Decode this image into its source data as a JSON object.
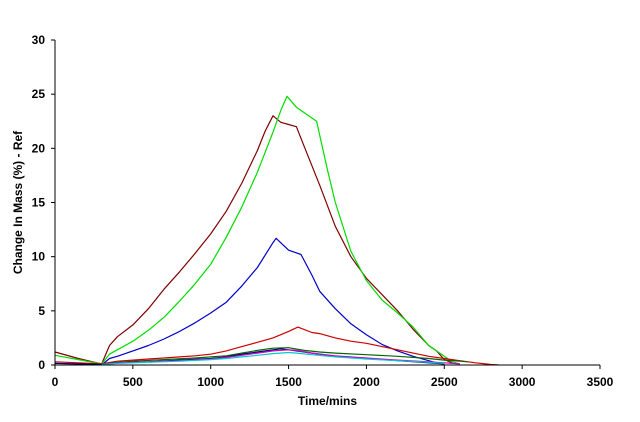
{
  "chart_data": {
    "type": "line",
    "title": "",
    "xlabel": "Time/mins",
    "ylabel": "Change In Mass (%) - Ref",
    "xlim": [
      0,
      3500
    ],
    "ylim": [
      0,
      30
    ],
    "xticks": [
      0,
      500,
      1000,
      1500,
      2000,
      2500,
      3000,
      3500
    ],
    "yticks": [
      0,
      5,
      10,
      15,
      20,
      25,
      30
    ],
    "grid": false,
    "legend": "none",
    "series": [
      {
        "color": "#800000",
        "points": [
          [
            0,
            1.2
          ],
          [
            150,
            0.6
          ],
          [
            300,
            0.1
          ],
          [
            350,
            1.8
          ],
          [
            400,
            2.6
          ],
          [
            500,
            3.7
          ],
          [
            600,
            5.2
          ],
          [
            700,
            7.0
          ],
          [
            800,
            8.6
          ],
          [
            900,
            10.3
          ],
          [
            1000,
            12.1
          ],
          [
            1100,
            14.2
          ],
          [
            1200,
            16.8
          ],
          [
            1300,
            19.8
          ],
          [
            1350,
            21.6
          ],
          [
            1400,
            23.0
          ],
          [
            1450,
            22.4
          ],
          [
            1500,
            22.2
          ],
          [
            1550,
            22.0
          ],
          [
            1600,
            20.2
          ],
          [
            1700,
            16.6
          ],
          [
            1800,
            12.8
          ],
          [
            1900,
            10.0
          ],
          [
            2000,
            8.0
          ],
          [
            2100,
            6.5
          ],
          [
            2200,
            5.0
          ],
          [
            2300,
            3.3
          ],
          [
            2400,
            1.8
          ],
          [
            2450,
            1.3
          ],
          [
            2500,
            0.5
          ],
          [
            2550,
            0.2
          ]
        ]
      },
      {
        "color": "#00dd00",
        "points": [
          [
            0,
            0.9
          ],
          [
            150,
            0.5
          ],
          [
            300,
            0.1
          ],
          [
            350,
            1.0
          ],
          [
            400,
            1.4
          ],
          [
            500,
            2.2
          ],
          [
            600,
            3.2
          ],
          [
            700,
            4.4
          ],
          [
            800,
            5.9
          ],
          [
            900,
            7.5
          ],
          [
            1000,
            9.3
          ],
          [
            1100,
            11.8
          ],
          [
            1200,
            14.6
          ],
          [
            1300,
            17.8
          ],
          [
            1400,
            21.5
          ],
          [
            1450,
            23.5
          ],
          [
            1490,
            24.8
          ],
          [
            1550,
            23.8
          ],
          [
            1600,
            23.3
          ],
          [
            1680,
            22.5
          ],
          [
            1750,
            18.0
          ],
          [
            1800,
            15.0
          ],
          [
            1900,
            10.5
          ],
          [
            2000,
            7.8
          ],
          [
            2100,
            6.0
          ],
          [
            2200,
            4.8
          ],
          [
            2300,
            3.5
          ],
          [
            2400,
            1.8
          ],
          [
            2500,
            0.8
          ],
          [
            2550,
            0.3
          ],
          [
            2600,
            0.1
          ]
        ]
      },
      {
        "color": "#0000cc",
        "points": [
          [
            300,
            0.0
          ],
          [
            350,
            0.6
          ],
          [
            400,
            0.8
          ],
          [
            500,
            1.3
          ],
          [
            600,
            1.8
          ],
          [
            700,
            2.4
          ],
          [
            800,
            3.1
          ],
          [
            900,
            3.9
          ],
          [
            1000,
            4.8
          ],
          [
            1100,
            5.8
          ],
          [
            1200,
            7.3
          ],
          [
            1300,
            9.0
          ],
          [
            1400,
            11.3
          ],
          [
            1420,
            11.7
          ],
          [
            1500,
            10.6
          ],
          [
            1580,
            10.2
          ],
          [
            1650,
            8.3
          ],
          [
            1700,
            6.8
          ],
          [
            1800,
            5.2
          ],
          [
            1900,
            3.8
          ],
          [
            2000,
            2.8
          ],
          [
            2100,
            1.9
          ],
          [
            2200,
            1.3
          ],
          [
            2300,
            0.8
          ],
          [
            2400,
            0.4
          ],
          [
            2450,
            0.2
          ],
          [
            2500,
            0.1
          ]
        ]
      },
      {
        "color": "#cc0000",
        "points": [
          [
            0,
            0.3
          ],
          [
            300,
            0.1
          ],
          [
            400,
            0.35
          ],
          [
            500,
            0.45
          ],
          [
            600,
            0.55
          ],
          [
            700,
            0.65
          ],
          [
            800,
            0.75
          ],
          [
            900,
            0.85
          ],
          [
            1000,
            1.0
          ],
          [
            1100,
            1.3
          ],
          [
            1200,
            1.7
          ],
          [
            1300,
            2.1
          ],
          [
            1400,
            2.5
          ],
          [
            1500,
            3.1
          ],
          [
            1560,
            3.5
          ],
          [
            1650,
            3.0
          ],
          [
            1700,
            2.9
          ],
          [
            1800,
            2.5
          ],
          [
            1900,
            2.2
          ],
          [
            2000,
            2.0
          ],
          [
            2100,
            1.7
          ],
          [
            2200,
            1.4
          ],
          [
            2300,
            1.1
          ],
          [
            2400,
            0.8
          ],
          [
            2500,
            0.6
          ],
          [
            2600,
            0.4
          ],
          [
            2700,
            0.2
          ],
          [
            2800,
            0.05
          ],
          [
            2850,
            0.0
          ]
        ]
      },
      {
        "color": "#006600",
        "points": [
          [
            300,
            0.05
          ],
          [
            400,
            0.25
          ],
          [
            500,
            0.35
          ],
          [
            700,
            0.5
          ],
          [
            900,
            0.65
          ],
          [
            1100,
            0.85
          ],
          [
            1200,
            1.1
          ],
          [
            1300,
            1.35
          ],
          [
            1400,
            1.55
          ],
          [
            1500,
            1.6
          ],
          [
            1600,
            1.35
          ],
          [
            1700,
            1.2
          ],
          [
            1800,
            1.1
          ],
          [
            2000,
            0.95
          ],
          [
            2200,
            0.8
          ],
          [
            2400,
            0.6
          ],
          [
            2500,
            0.45
          ],
          [
            2600,
            0.35
          ],
          [
            2650,
            0.3
          ]
        ]
      },
      {
        "color": "#000066",
        "points": [
          [
            0,
            0.15
          ],
          [
            300,
            0.05
          ],
          [
            400,
            0.2
          ],
          [
            600,
            0.3
          ],
          [
            800,
            0.45
          ],
          [
            1000,
            0.6
          ],
          [
            1100,
            0.75
          ],
          [
            1200,
            1.0
          ],
          [
            1300,
            1.2
          ],
          [
            1400,
            1.4
          ],
          [
            1450,
            1.5
          ],
          [
            1550,
            1.3
          ],
          [
            1650,
            1.1
          ],
          [
            1800,
            0.8
          ],
          [
            2000,
            0.6
          ],
          [
            2200,
            0.4
          ],
          [
            2400,
            0.2
          ],
          [
            2500,
            0.1
          ]
        ]
      },
      {
        "color": "#cc00cc",
        "points": [
          [
            300,
            0.05
          ],
          [
            400,
            0.2
          ],
          [
            600,
            0.3
          ],
          [
            800,
            0.4
          ],
          [
            1000,
            0.55
          ],
          [
            1100,
            0.7
          ],
          [
            1200,
            0.9
          ],
          [
            1300,
            1.1
          ],
          [
            1400,
            1.3
          ],
          [
            1500,
            1.4
          ],
          [
            1550,
            1.35
          ],
          [
            1650,
            1.1
          ],
          [
            1800,
            0.85
          ],
          [
            2000,
            0.65
          ],
          [
            2200,
            0.45
          ],
          [
            2400,
            0.3
          ],
          [
            2500,
            0.2
          ],
          [
            2600,
            0.1
          ]
        ]
      },
      {
        "color": "#00cccc",
        "points": [
          [
            300,
            0.05
          ],
          [
            400,
            0.15
          ],
          [
            600,
            0.25
          ],
          [
            800,
            0.35
          ],
          [
            1000,
            0.5
          ],
          [
            1100,
            0.6
          ],
          [
            1200,
            0.75
          ],
          [
            1300,
            0.9
          ],
          [
            1400,
            1.05
          ],
          [
            1500,
            1.15
          ],
          [
            1550,
            1.1
          ],
          [
            1650,
            0.95
          ],
          [
            1800,
            0.75
          ],
          [
            2000,
            0.55
          ],
          [
            2200,
            0.4
          ],
          [
            2400,
            0.25
          ],
          [
            2500,
            0.15
          ]
        ]
      }
    ]
  }
}
